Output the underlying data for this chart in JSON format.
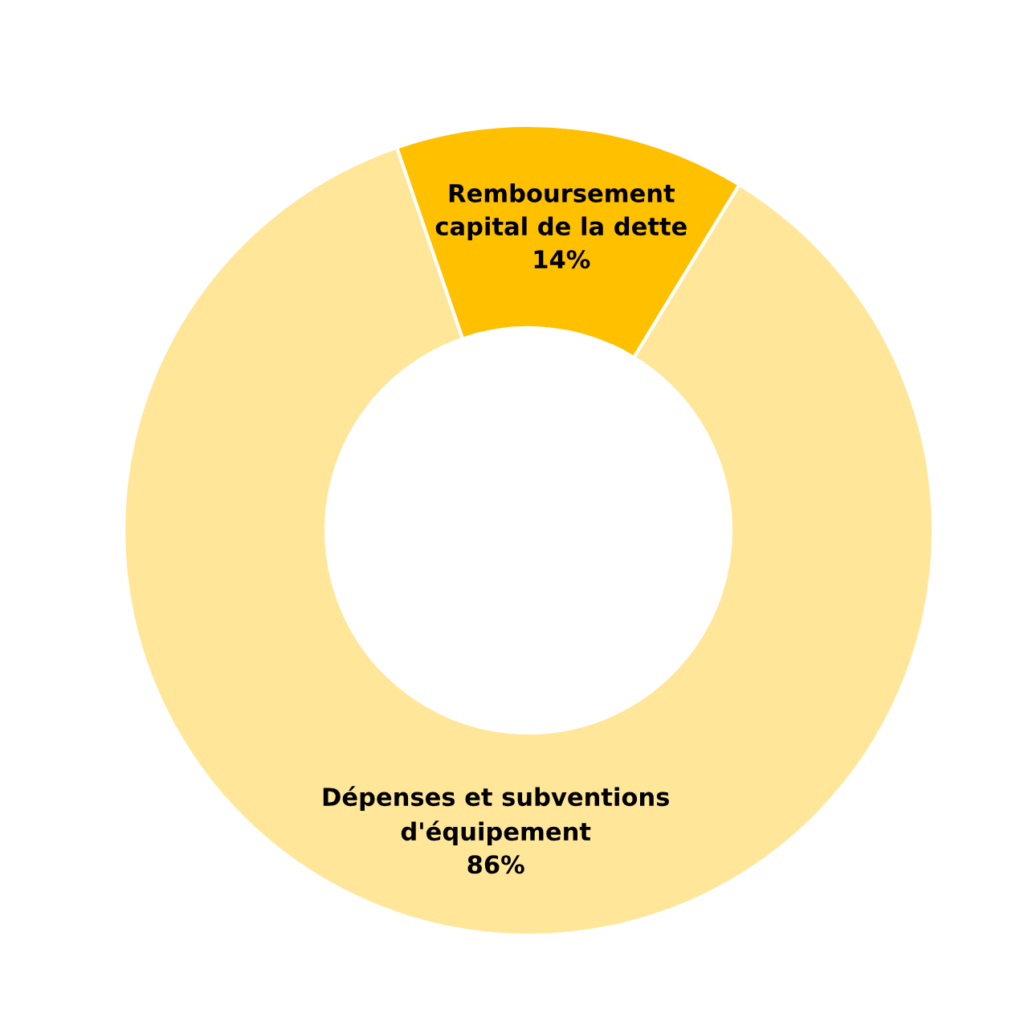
{
  "chart_data": {
    "type": "donut",
    "categories": [
      "Remboursement\ncapital de la dette",
      "Dépenses et subventions\nd'équipement"
    ],
    "values": [
      14,
      86
    ],
    "colors": [
      "#ffc000",
      "#ffe699"
    ],
    "value_labels": [
      "14%",
      "86%"
    ]
  }
}
